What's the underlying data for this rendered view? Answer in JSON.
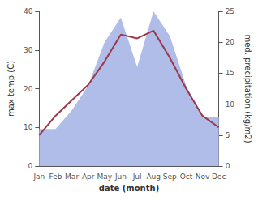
{
  "chart_data": {
    "type": "line",
    "xlabel": "date (month)",
    "ylabel": "max temp (C)",
    "y2label": "med. precipitation (kg/m2)",
    "categories": [
      "Jan",
      "Feb",
      "Mar",
      "Apr",
      "May",
      "Jun",
      "Jul",
      "Aug",
      "Sep",
      "Oct",
      "Nov",
      "Dec"
    ],
    "series": [
      {
        "type": "area",
        "axis": "y2",
        "color": "#b0bde8",
        "values": [
          6,
          6,
          9,
          13,
          20,
          24,
          16,
          25,
          21,
          13,
          8,
          8
        ]
      },
      {
        "type": "line",
        "color": "#9b3a4a",
        "values": [
          8,
          13,
          17,
          21,
          27,
          34,
          33,
          35,
          28,
          20,
          13,
          10
        ]
      }
    ],
    "ylim": [
      0,
      40
    ],
    "yticks": [
      0,
      10,
      20,
      30,
      40
    ],
    "y2lim": [
      0,
      25
    ],
    "y2ticks": [
      0,
      5,
      10,
      15,
      20,
      25
    ],
    "grid": false
  }
}
